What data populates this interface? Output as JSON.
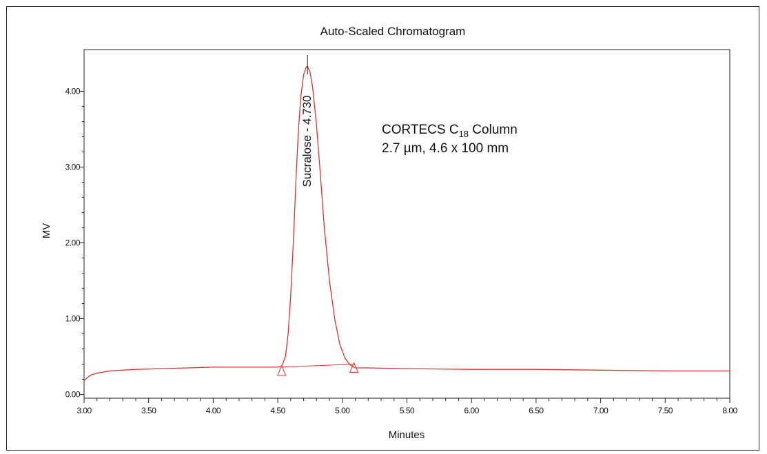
{
  "chart_data": {
    "type": "line",
    "title": "Auto-Scaled Chromatogram",
    "xlabel": "Minutes",
    "ylabel": "MV",
    "xlim": [
      3.0,
      8.0
    ],
    "ylim": [
      -0.05,
      4.55
    ],
    "x_ticks": [
      "3.00",
      "3.50",
      "4.00",
      "4.50",
      "5.00",
      "5.50",
      "6.00",
      "6.50",
      "7.00",
      "7.50",
      "8.00"
    ],
    "y_ticks": [
      "0.00",
      "1.00",
      "2.00",
      "3.00",
      "4.00"
    ],
    "series": [
      {
        "color": "#e0302a",
        "x": [
          3.0,
          3.03,
          3.06,
          3.1,
          3.2,
          3.4,
          3.6,
          3.8,
          4.0,
          4.2,
          4.4,
          4.5,
          4.53,
          4.56,
          4.58,
          4.6,
          4.62,
          4.64,
          4.66,
          4.68,
          4.7,
          4.72,
          4.73,
          4.75,
          4.77,
          4.8,
          4.83,
          4.86,
          4.9,
          4.94,
          4.98,
          5.02,
          5.06,
          5.1,
          5.2,
          5.5,
          6.0,
          6.5,
          7.0,
          7.5,
          8.0
        ],
        "y": [
          0.18,
          0.23,
          0.26,
          0.28,
          0.31,
          0.33,
          0.34,
          0.35,
          0.36,
          0.36,
          0.36,
          0.36,
          0.37,
          0.5,
          0.8,
          1.3,
          2.0,
          2.8,
          3.5,
          3.95,
          4.22,
          4.32,
          4.33,
          4.25,
          4.05,
          3.55,
          2.9,
          2.2,
          1.5,
          1.0,
          0.66,
          0.48,
          0.39,
          0.35,
          0.35,
          0.34,
          0.33,
          0.33,
          0.32,
          0.31,
          0.31
        ]
      }
    ],
    "baseline": {
      "x": [
        4.53,
        5.09
      ],
      "y": [
        0.36,
        0.4
      ]
    },
    "integration_marks": [
      {
        "x": 4.53,
        "y": 0.36
      },
      {
        "x": 5.09,
        "y": 0.4
      }
    ],
    "peak": {
      "x": 4.73,
      "y": 4.33,
      "label": "Sucralose - 4.730"
    },
    "annotation": {
      "line1_prefix": "CORTECS C",
      "line1_subscript": "18",
      "line1_suffix": " Column",
      "line2": "2.7 µm, 4.6 x 100 mm"
    }
  }
}
